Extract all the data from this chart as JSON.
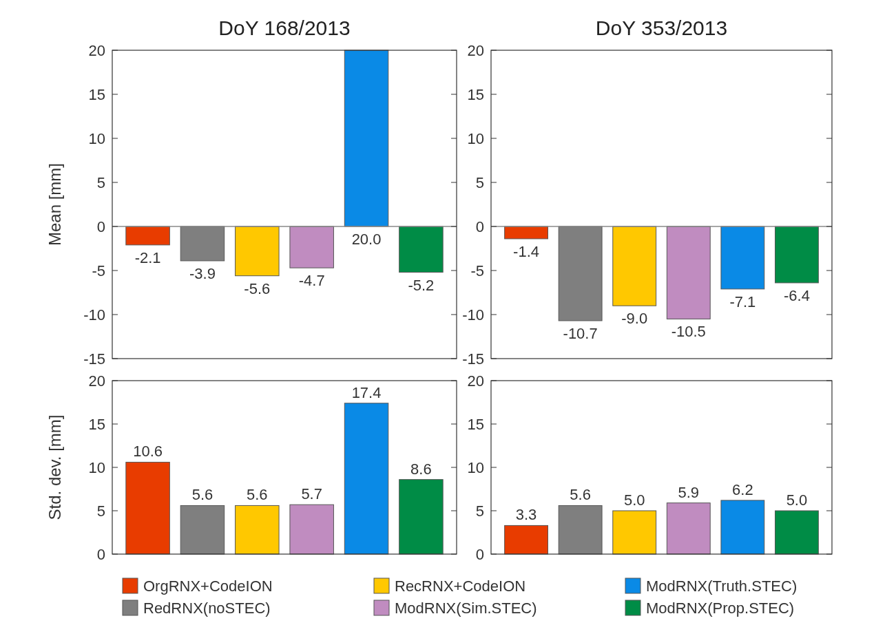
{
  "chart_data": [
    {
      "type": "bar",
      "title": "DoY 168/2013",
      "ylabel": "Mean [mm]",
      "categories": [
        null
      ],
      "ylim": [
        -15,
        20
      ],
      "yticks": [
        -15,
        -10,
        -5,
        0,
        5,
        10,
        15,
        20
      ],
      "series": [
        {
          "color": "#e83c00",
          "values": [
            -2.1
          ],
          "value_labels": [
            "-2.1"
          ]
        },
        {
          "color": "#7f7f7f",
          "values": [
            -3.9
          ],
          "value_labels": [
            "-3.9"
          ]
        },
        {
          "color": "#ffc800",
          "values": [
            -5.6
          ],
          "value_labels": [
            "-5.6"
          ]
        },
        {
          "color": "#c08cc0",
          "values": [
            -4.7
          ],
          "value_labels": [
            "-4.7"
          ]
        },
        {
          "color": "#0a8ae6",
          "values": [
            20.0
          ],
          "value_labels": [
            "20.0"
          ]
        },
        {
          "color": "#008c46",
          "values": [
            -5.2
          ],
          "value_labels": [
            "-5.2"
          ]
        }
      ]
    },
    {
      "type": "bar",
      "title": "DoY 353/2013",
      "categories": [
        null
      ],
      "ylim": [
        -15,
        20
      ],
      "yticks": [
        -15,
        -10,
        -5,
        0,
        5,
        10,
        15,
        20
      ],
      "series": [
        {
          "color": "#e83c00",
          "values": [
            -1.4
          ],
          "value_labels": [
            "-1.4"
          ]
        },
        {
          "color": "#7f7f7f",
          "values": [
            -10.7
          ],
          "value_labels": [
            "-10.7"
          ]
        },
        {
          "color": "#ffc800",
          "values": [
            -9.0
          ],
          "value_labels": [
            "-9.0"
          ]
        },
        {
          "color": "#c08cc0",
          "values": [
            -10.5
          ],
          "value_labels": [
            "-10.5"
          ]
        },
        {
          "color": "#0a8ae6",
          "values": [
            -7.1
          ],
          "value_labels": [
            "-7.1"
          ]
        },
        {
          "color": "#008c46",
          "values": [
            -6.4
          ],
          "value_labels": [
            "-6.4"
          ]
        }
      ]
    },
    {
      "type": "bar",
      "ylabel": "Std. dev. [mm]",
      "categories": [
        null
      ],
      "ylim": [
        0,
        20
      ],
      "yticks": [
        0,
        5,
        10,
        15,
        20
      ],
      "legend": "bottom",
      "series": [
        {
          "name": "OrgRNX+CodeION",
          "color": "#e83c00",
          "values": [
            10.6
          ],
          "value_labels": [
            "10.6"
          ]
        },
        {
          "name": "RedRNX(noSTEC)",
          "color": "#7f7f7f",
          "values": [
            5.6
          ],
          "value_labels": [
            "5.6"
          ]
        },
        {
          "name": "RecRNX+CodeION",
          "color": "#ffc800",
          "values": [
            5.6
          ],
          "value_labels": [
            "5.6"
          ]
        },
        {
          "name": "ModRNX(Sim.STEC)",
          "color": "#c08cc0",
          "values": [
            5.7
          ],
          "value_labels": [
            "5.7"
          ]
        },
        {
          "name": "ModRNX(Truth.STEC)",
          "color": "#0a8ae6",
          "values": [
            17.4
          ],
          "value_labels": [
            "17.4"
          ]
        },
        {
          "name": "ModRNX(Prop.STEC)",
          "color": "#008c46",
          "values": [
            8.6
          ],
          "value_labels": [
            "8.6"
          ]
        }
      ]
    },
    {
      "type": "bar",
      "categories": [
        null
      ],
      "ylim": [
        0,
        20
      ],
      "yticks": [
        0,
        5,
        10,
        15,
        20
      ],
      "series": [
        {
          "color": "#e83c00",
          "values": [
            3.3
          ],
          "value_labels": [
            "3.3"
          ]
        },
        {
          "color": "#7f7f7f",
          "values": [
            5.6
          ],
          "value_labels": [
            "5.6"
          ]
        },
        {
          "color": "#ffc800",
          "values": [
            5.0
          ],
          "value_labels": [
            "5.0"
          ]
        },
        {
          "color": "#c08cc0",
          "values": [
            5.9
          ],
          "value_labels": [
            "5.9"
          ]
        },
        {
          "color": "#0a8ae6",
          "values": [
            6.2
          ],
          "value_labels": [
            "6.2"
          ]
        },
        {
          "color": "#008c46",
          "values": [
            5.0
          ],
          "value_labels": [
            "5.0"
          ]
        }
      ]
    }
  ]
}
